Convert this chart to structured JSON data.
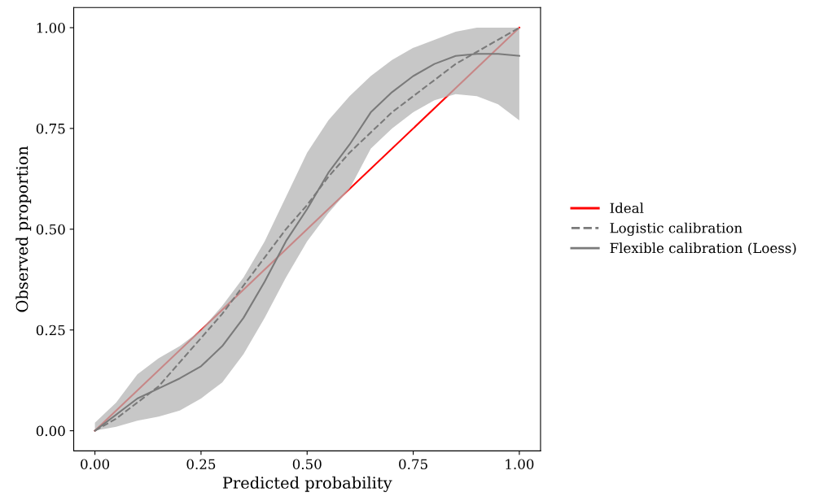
{
  "chart_data": {
    "type": "line",
    "xlabel": "Predicted probability",
    "ylabel": "Observed proportion",
    "xlim": [
      -0.05,
      1.05
    ],
    "ylim": [
      -0.05,
      1.05
    ],
    "xticks": [
      {
        "value": 0,
        "label": "0.00"
      },
      {
        "value": 0.25,
        "label": "0.25"
      },
      {
        "value": 0.5,
        "label": "0.50"
      },
      {
        "value": 0.75,
        "label": "0.75"
      },
      {
        "value": 1,
        "label": "1.00"
      }
    ],
    "yticks": [
      {
        "value": 0,
        "label": "0.00"
      },
      {
        "value": 0.25,
        "label": "0.25"
      },
      {
        "value": 0.5,
        "label": "0.50"
      },
      {
        "value": 0.75,
        "label": "0.75"
      },
      {
        "value": 1,
        "label": "1.00"
      }
    ],
    "grid": false,
    "legend": "right",
    "series": [
      {
        "name": "Ideal",
        "color": "#ff0000",
        "line_style": "solid",
        "x": [
          0,
          1
        ],
        "values": [
          0,
          1
        ]
      },
      {
        "name": "Logistic calibration",
        "color": "#7a7a7a",
        "line_style": "dashed",
        "x": [
          0,
          0.05,
          0.1,
          0.15,
          0.2,
          0.25,
          0.3,
          0.35,
          0.4,
          0.45,
          0.5,
          0.55,
          0.6,
          0.65,
          0.7,
          0.75,
          0.8,
          0.85,
          0.9,
          0.95,
          1
        ],
        "values": [
          0,
          0.03,
          0.07,
          0.11,
          0.17,
          0.23,
          0.29,
          0.36,
          0.43,
          0.5,
          0.56,
          0.63,
          0.69,
          0.74,
          0.79,
          0.83,
          0.87,
          0.91,
          0.94,
          0.97,
          1.0
        ]
      },
      {
        "name": "Flexible calibration (Loess)",
        "color": "#7a7a7a",
        "line_style": "solid",
        "x": [
          0,
          0.05,
          0.1,
          0.15,
          0.2,
          0.25,
          0.3,
          0.35,
          0.4,
          0.45,
          0.5,
          0.55,
          0.6,
          0.65,
          0.7,
          0.75,
          0.8,
          0.85,
          0.9,
          0.95,
          1
        ],
        "values": [
          0,
          0.04,
          0.08,
          0.105,
          0.13,
          0.16,
          0.21,
          0.28,
          0.37,
          0.47,
          0.55,
          0.64,
          0.71,
          0.79,
          0.84,
          0.88,
          0.91,
          0.93,
          0.935,
          0.935,
          0.93
        ],
        "lower": [
          0,
          0.01,
          0.025,
          0.035,
          0.05,
          0.08,
          0.12,
          0.19,
          0.28,
          0.38,
          0.47,
          0.54,
          0.6,
          0.7,
          0.75,
          0.79,
          0.82,
          0.835,
          0.83,
          0.81,
          0.77
        ],
        "upper": [
          0.02,
          0.07,
          0.14,
          0.18,
          0.21,
          0.25,
          0.31,
          0.38,
          0.47,
          0.58,
          0.69,
          0.77,
          0.83,
          0.88,
          0.92,
          0.95,
          0.97,
          0.99,
          1.0,
          1.0,
          1.0
        ]
      }
    ]
  }
}
